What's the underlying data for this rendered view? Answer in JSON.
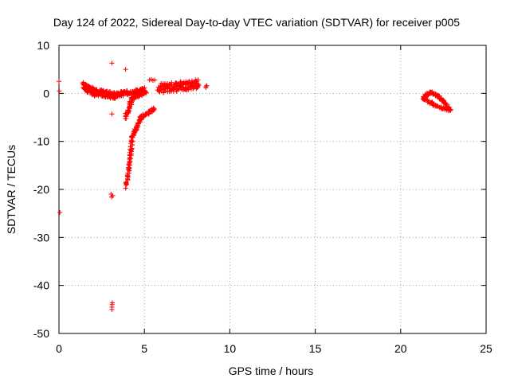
{
  "chart_data": {
    "type": "scatter",
    "title": "Day 124 of 2022, Sidereal Day-to-day VTEC variation (SDTVAR) for receiver p005",
    "xlabel": "GPS time / hours",
    "ylabel": "SDTVAR / TECUs",
    "xlim": [
      0,
      25
    ],
    "ylim": [
      -50,
      10
    ],
    "x_ticks": [
      0,
      5,
      10,
      15,
      20,
      25
    ],
    "y_ticks": [
      -50,
      -40,
      -30,
      -20,
      -10,
      0,
      10
    ],
    "x_tick_labels": [
      "0",
      "5",
      "10",
      "15",
      "20",
      "25"
    ],
    "y_tick_labels": [
      "-50",
      "-40",
      "-30",
      "-20",
      "-10",
      "0",
      "10"
    ],
    "grid": true,
    "marker": "+",
    "series": [
      {
        "name": "SDTVAR",
        "color": "#ff0000",
        "points": [
          [
            0.0,
            2.5
          ],
          [
            0.02,
            0.5
          ],
          [
            0.05,
            -24.8
          ],
          [
            3.1,
            6.3
          ],
          [
            3.9,
            5.0
          ],
          [
            3.1,
            -4.3
          ],
          [
            3.05,
            -21.0
          ],
          [
            3.15,
            -21.3
          ],
          [
            3.08,
            -21.6
          ],
          [
            3.1,
            -44.0
          ],
          [
            3.1,
            -44.5
          ],
          [
            3.1,
            -45.0
          ],
          [
            3.12,
            -43.6
          ],
          [
            8.6,
            1.2
          ],
          [
            8.65,
            1.6
          ],
          [
            8.6,
            1.4
          ],
          [
            5.3,
            2.8
          ],
          [
            5.4,
            2.9
          ],
          [
            5.5,
            2.7
          ],
          [
            5.6,
            2.8
          ]
        ],
        "segments": [
          {
            "x": [
              1.4,
              2.2
            ],
            "y": [
              1.5,
              0.0
            ],
            "spread": 1.6,
            "n": 90
          },
          {
            "x": [
              2.2,
              3.3
            ],
            "y": [
              0.2,
              -0.5
            ],
            "spread": 1.4,
            "n": 90
          },
          {
            "x": [
              3.3,
              4.1
            ],
            "y": [
              -0.3,
              0.2
            ],
            "spread": 1.0,
            "n": 50
          },
          {
            "x": [
              4.1,
              5.0
            ],
            "y": [
              0.0,
              0.8
            ],
            "spread": 0.8,
            "n": 50
          },
          {
            "x": [
              5.8,
              8.2
            ],
            "y": [
              1.0,
              2.0
            ],
            "spread": 2.0,
            "n": 160
          },
          {
            "x": [
              3.9,
              4.3
            ],
            "y": [
              -5.0,
              -1.0
            ],
            "spread": 1.0,
            "n": 40
          },
          {
            "x": [
              4.3,
              5.1
            ],
            "y": [
              -1.0,
              0.3
            ],
            "spread": 0.8,
            "n": 40
          },
          {
            "x": [
              3.95,
              4.3
            ],
            "y": [
              -19.5,
              -9.0
            ],
            "spread": 0.6,
            "n": 60
          },
          {
            "x": [
              4.3,
              4.8
            ],
            "y": [
              -9.0,
              -5.0
            ],
            "spread": 0.6,
            "n": 40
          },
          {
            "x": [
              4.8,
              5.6
            ],
            "y": [
              -5.0,
              -3.2
            ],
            "spread": 0.6,
            "n": 40
          },
          {
            "x": [
              21.3,
              21.7
            ],
            "y": [
              -1.0,
              0.3
            ],
            "spread": 0.6,
            "n": 25
          },
          {
            "x": [
              21.7,
              22.3
            ],
            "y": [
              0.3,
              -0.8
            ],
            "spread": 0.5,
            "n": 30
          },
          {
            "x": [
              22.3,
              22.9
            ],
            "y": [
              -1.0,
              -3.3
            ],
            "spread": 0.5,
            "n": 30
          },
          {
            "x": [
              21.3,
              22.1
            ],
            "y": [
              -1.0,
              -2.6
            ],
            "spread": 0.5,
            "n": 30
          },
          {
            "x": [
              22.1,
              22.9
            ],
            "y": [
              -2.6,
              -3.6
            ],
            "spread": 0.4,
            "n": 25
          }
        ]
      }
    ]
  }
}
